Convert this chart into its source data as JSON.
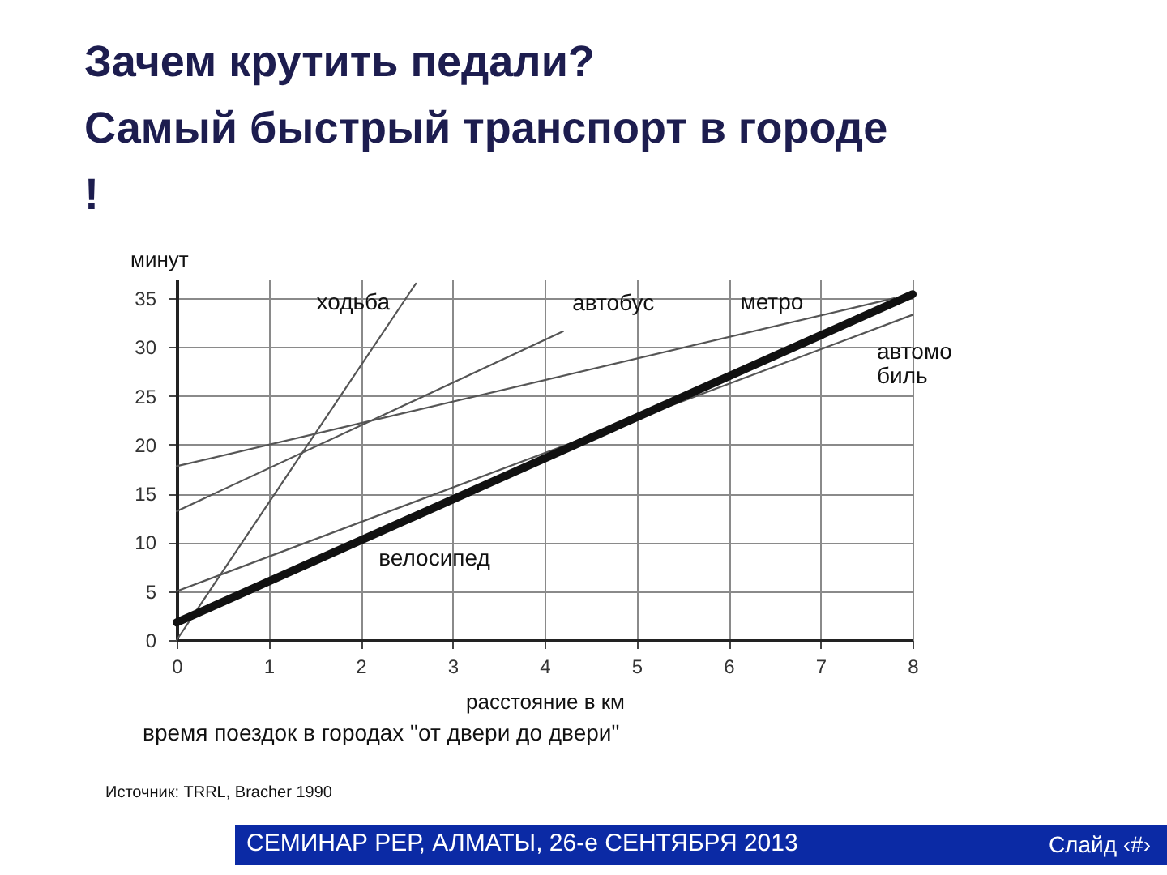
{
  "chart_data": {
    "type": "line",
    "title": "Зачем крутить педали?\nСамый быстрый транспорт в городе\n!",
    "xlabel": "расстояние в км",
    "ylabel": "минут",
    "xlim": [
      0,
      8
    ],
    "ylim": [
      0,
      37
    ],
    "xticks": [
      0,
      1,
      2,
      3,
      4,
      5,
      6,
      7,
      8
    ],
    "yticks": [
      0,
      5,
      10,
      15,
      20,
      25,
      30,
      35
    ],
    "grid": true,
    "series": [
      {
        "name": "ходьба",
        "color": "#555555",
        "x": [
          0,
          2.6
        ],
        "values": [
          0,
          36.5
        ]
      },
      {
        "name": "автобус",
        "color": "#555555",
        "x": [
          0,
          4.2
        ],
        "values": [
          13.2,
          31.6
        ]
      },
      {
        "name": "метро",
        "color": "#555555",
        "x": [
          0,
          7.8
        ],
        "values": [
          17.8,
          35
        ]
      },
      {
        "name": "автомо\nбиль",
        "color": "#555555",
        "x": [
          0,
          8
        ],
        "values": [
          5,
          33.3
        ]
      },
      {
        "name": "велосипед",
        "color": "#111111",
        "x": [
          0,
          8
        ],
        "values": [
          1.8,
          35.4
        ]
      }
    ],
    "annotations": [
      "время поездок в городах \"от двери до двери\"",
      "Источник: TRRL, Bracher 1990",
      "СЕМИНАР РЕР, АЛМАТЫ, 26-е СЕНТЯБРЯ 2013",
      "Слайд ‹#›"
    ]
  }
}
